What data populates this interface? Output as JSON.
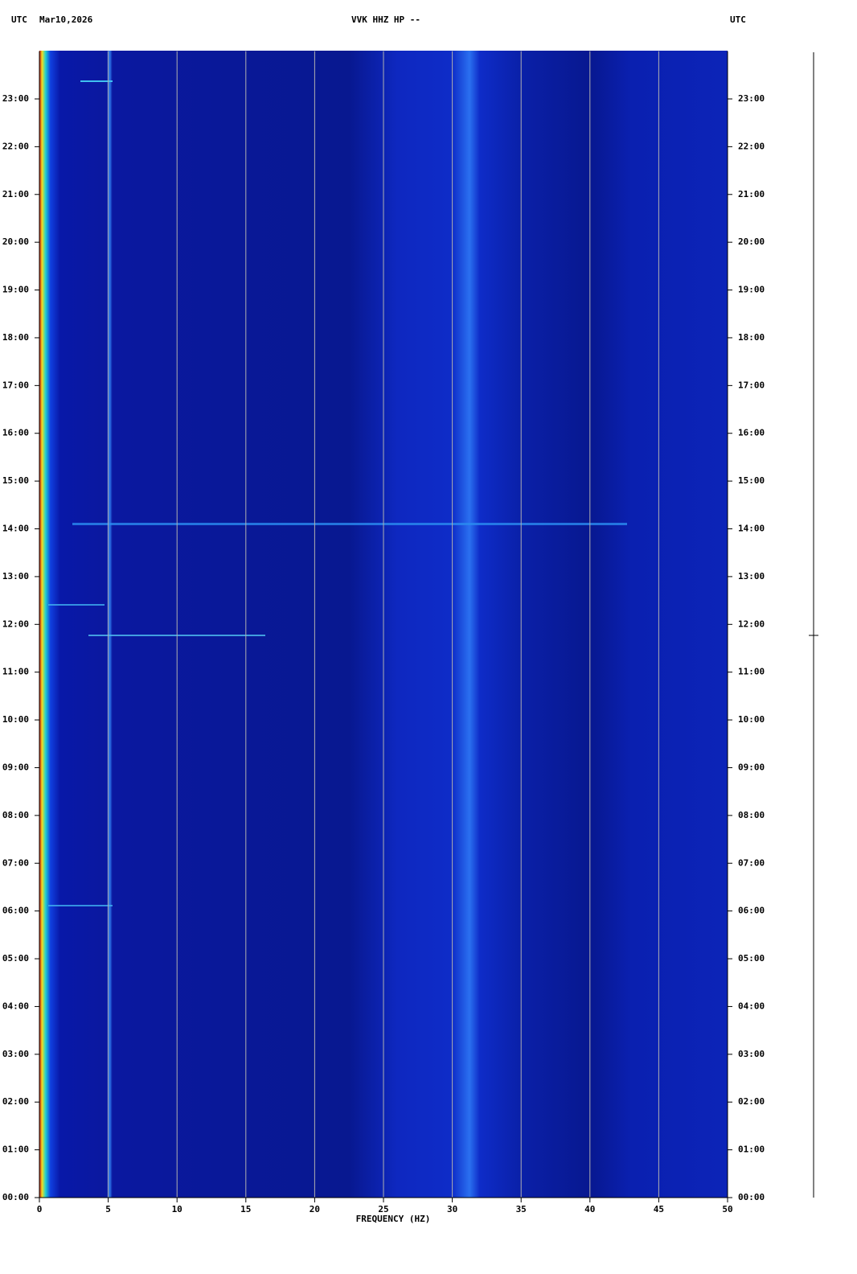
{
  "chart_data": {
    "type": "spectrogram",
    "title": "VVK HHZ HP --",
    "date": "Mar10,2026",
    "left_label": "UTC",
    "right_label": "UTC",
    "x_label": "FREQUENCY (HZ)",
    "xlim": [
      0,
      50
    ],
    "xticks": [
      0,
      5,
      10,
      15,
      20,
      25,
      30,
      35,
      40,
      45,
      50
    ],
    "ylim": [
      0,
      24
    ],
    "yticks": [
      {
        "value": 0,
        "label": "00:00"
      },
      {
        "value": 1,
        "label": "01:00"
      },
      {
        "value": 2,
        "label": "02:00"
      },
      {
        "value": 3,
        "label": "03:00"
      },
      {
        "value": 4,
        "label": "04:00"
      },
      {
        "value": 5,
        "label": "05:00"
      },
      {
        "value": 6,
        "label": "06:00"
      },
      {
        "value": 7,
        "label": "07:00"
      },
      {
        "value": 8,
        "label": "08:00"
      },
      {
        "value": 9,
        "label": "09:00"
      },
      {
        "value": 10,
        "label": "10:00"
      },
      {
        "value": 11,
        "label": "11:00"
      },
      {
        "value": 12,
        "label": "12:00"
      },
      {
        "value": 13,
        "label": "13:00"
      },
      {
        "value": 14,
        "label": "14:00"
      },
      {
        "value": 15,
        "label": "15:00"
      },
      {
        "value": 16,
        "label": "16:00"
      },
      {
        "value": 17,
        "label": "17:00"
      },
      {
        "value": 18,
        "label": "18:00"
      },
      {
        "value": 19,
        "label": "19:00"
      },
      {
        "value": 20,
        "label": "20:00"
      },
      {
        "value": 21,
        "label": "21:00"
      },
      {
        "value": 22,
        "label": "22:00"
      },
      {
        "value": 23,
        "label": "23:00"
      }
    ],
    "grid": true
  }
}
